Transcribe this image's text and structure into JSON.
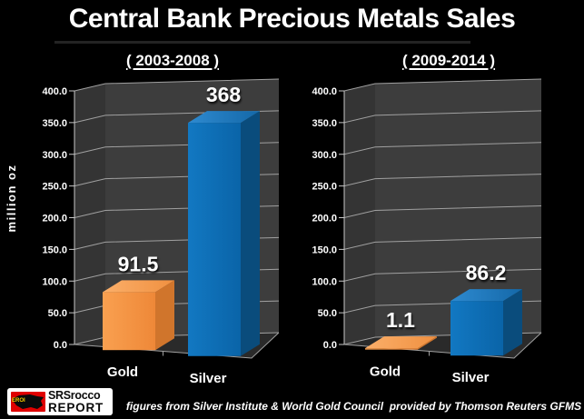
{
  "page": {
    "title": "Central Bank Precious Metals Sales"
  },
  "footer": {
    "attribution": "figures from Silver Institute & World Gold Council  provided by Thomson Reuters GFMS",
    "logo": {
      "badge": "EROI",
      "name": "SRSrocco",
      "word": "REPORT"
    }
  },
  "colors": {
    "background": "#000000",
    "wall": "#3D3D3D",
    "side_wall": "#343434",
    "floor": "#2A2A2A",
    "gridline": "#A0A0A0",
    "axis": "#C8C8C8",
    "label": "#FFFFFF",
    "gold": {
      "front": "#F9A050",
      "front2": "#EE8838",
      "top": "#FBAF6A",
      "top2": "#F09040",
      "side": "#D0752C"
    },
    "silver": {
      "front": "#1278C2",
      "front2": "#0A64A8",
      "top": "#2E8AD0",
      "top2": "#1468A8",
      "side": "#0A4C7C"
    }
  },
  "chart_data": [
    {
      "type": "bar",
      "title": "( 2003-2008 )",
      "categories": [
        "Gold",
        "Silver"
      ],
      "values": [
        91.5,
        368
      ],
      "data_labels": [
        "91.5",
        "368"
      ],
      "series_colors": [
        "gold",
        "silver"
      ],
      "xlabel": "",
      "ylabel": "million oz",
      "ylim": [
        0,
        400
      ],
      "ytick_step": 50,
      "yticks": [
        "0.0",
        "50.0",
        "100.0",
        "150.0",
        "200.0",
        "250.0",
        "300.0",
        "350.0",
        "400.0"
      ],
      "grid": true,
      "legend": "none",
      "style": "3d-column"
    },
    {
      "type": "bar",
      "title": "( 2009-2014 )",
      "categories": [
        "Gold",
        "Silver"
      ],
      "values": [
        1.1,
        86.2
      ],
      "data_labels": [
        "1.1",
        "86.2"
      ],
      "series_colors": [
        "gold",
        "silver"
      ],
      "xlabel": "",
      "ylabel": "",
      "ylim": [
        0,
        400
      ],
      "ytick_step": 50,
      "yticks": [
        "0.0",
        "50.0",
        "100.0",
        "150.0",
        "200.0",
        "250.0",
        "300.0",
        "350.0",
        "400.0"
      ],
      "grid": true,
      "legend": "none",
      "style": "3d-column"
    }
  ]
}
